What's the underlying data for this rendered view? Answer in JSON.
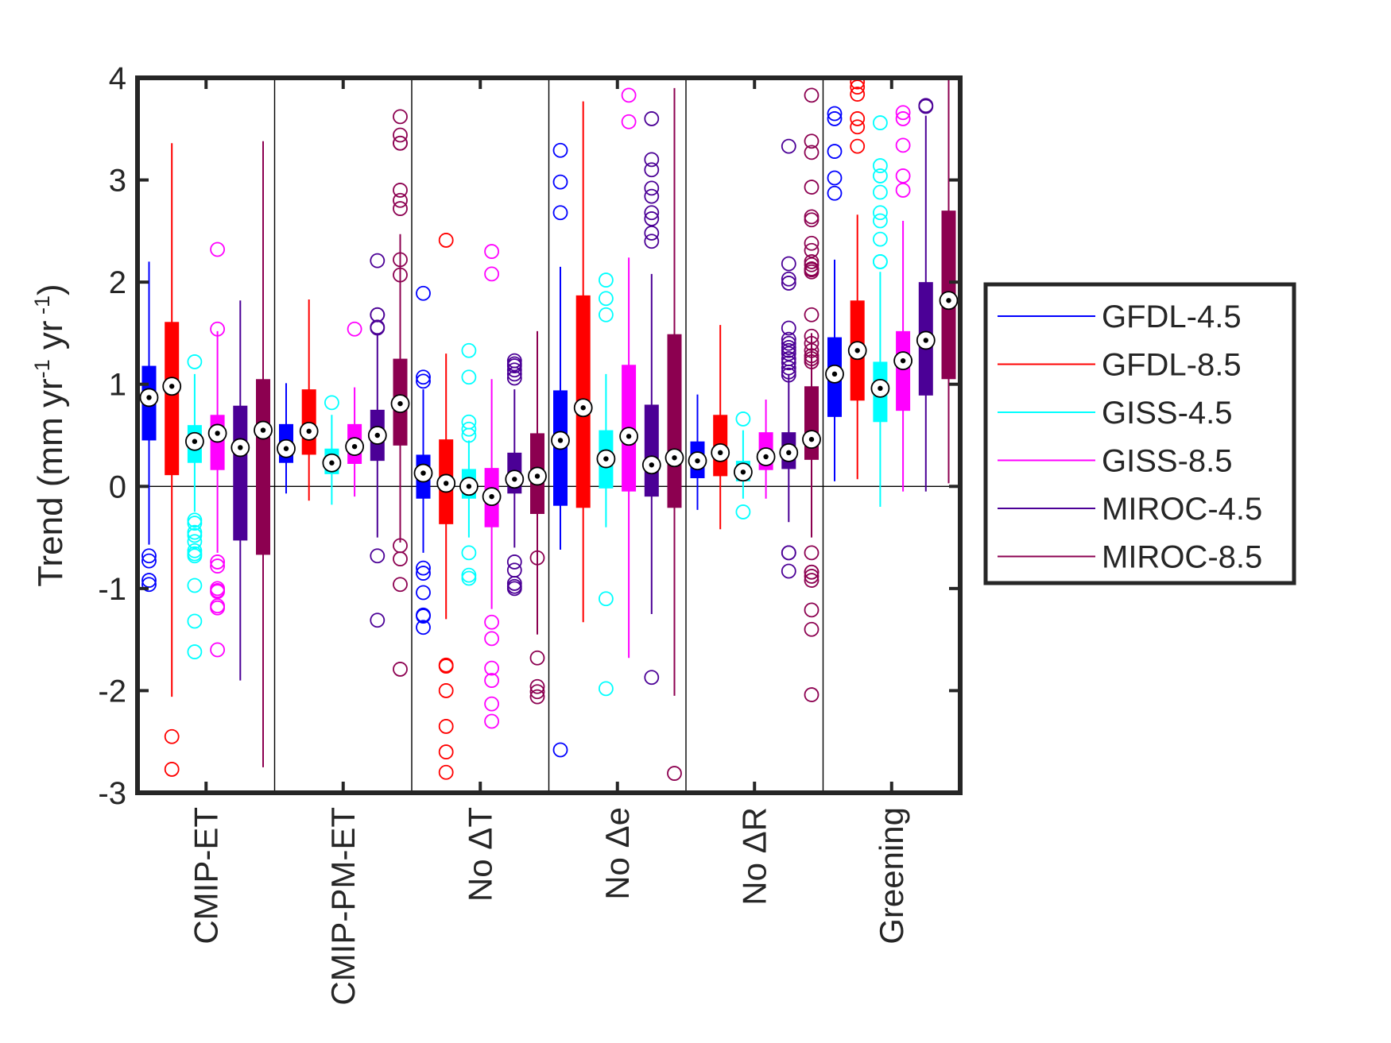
{
  "chart_data": {
    "type": "box",
    "ylabel": {
      "main": "Trend (mm yr",
      "sup1": "-1",
      "mid": " yr",
      "sup2": " -1",
      "end": ")"
    },
    "ylim": [
      -3,
      4
    ],
    "yticks": [
      -3,
      -2,
      -1,
      0,
      1,
      2,
      3,
      4
    ],
    "ytick_labels": [
      "-3",
      "-2",
      "-1",
      "0",
      "1",
      "2",
      "3",
      "4"
    ],
    "grid": false,
    "legend_position": "right",
    "categories": [
      "CMIP-ET",
      "CMIP-PM-ET",
      "No ΔT",
      "No Δe",
      "No ΔR",
      "Greening"
    ],
    "series": [
      {
        "name": "GFDL-4.5",
        "color": "#0000ff",
        "boxes": [
          {
            "median": 0.87,
            "q1": 0.45,
            "q3": 1.18,
            "wlo": -0.57,
            "whi": 2.2,
            "outliers": [
              -0.73,
              -0.96,
              -0.92,
              -0.68
            ]
          },
          {
            "median": 0.37,
            "q1": 0.23,
            "q3": 0.61,
            "wlo": -0.07,
            "whi": 1.01,
            "outliers": []
          },
          {
            "median": 0.13,
            "q1": -0.12,
            "q3": 0.31,
            "wlo": -0.65,
            "whi": 0.95,
            "outliers": [
              1.89,
              1.07,
              1.03,
              -0.8,
              -0.85,
              -1.04,
              -1.26,
              -1.27,
              -1.38
            ]
          },
          {
            "median": 0.45,
            "q1": -0.19,
            "q3": 0.94,
            "wlo": -0.62,
            "whi": 2.15,
            "outliers": [
              3.29,
              2.98,
              2.68,
              -2.58
            ]
          },
          {
            "median": 0.25,
            "q1": 0.08,
            "q3": 0.44,
            "wlo": -0.23,
            "whi": 0.9,
            "outliers": []
          },
          {
            "median": 1.1,
            "q1": 0.68,
            "q3": 1.46,
            "wlo": 0.05,
            "whi": 2.22,
            "outliers": [
              3.65,
              3.6,
              3.28,
              3.02,
              2.87
            ]
          }
        ]
      },
      {
        "name": "GFDL-8.5",
        "color": "#ff0000",
        "boxes": [
          {
            "median": 0.98,
            "q1": 0.11,
            "q3": 1.61,
            "wlo": -2.06,
            "whi": 3.36,
            "outliers": [
              -2.45,
              -2.77
            ]
          },
          {
            "median": 0.54,
            "q1": 0.31,
            "q3": 0.95,
            "wlo": -0.14,
            "whi": 1.83,
            "outliers": []
          },
          {
            "median": 0.03,
            "q1": -0.37,
            "q3": 0.46,
            "wlo": -1.3,
            "whi": 1.3,
            "outliers": [
              2.41,
              -1.75,
              -1.76,
              -2.0,
              -2.35,
              -2.6,
              -2.8
            ]
          },
          {
            "median": 0.77,
            "q1": -0.21,
            "q3": 1.87,
            "wlo": -1.33,
            "whi": 3.77,
            "outliers": []
          },
          {
            "median": 0.33,
            "q1": 0.1,
            "q3": 0.7,
            "wlo": -0.42,
            "whi": 1.58,
            "outliers": []
          },
          {
            "median": 1.33,
            "q1": 0.84,
            "q3": 1.82,
            "wlo": 0.07,
            "whi": 2.66,
            "outliers": [
              3.96,
              3.91,
              3.84,
              3.6,
              3.52,
              3.33
            ]
          }
        ]
      },
      {
        "name": "GISS-4.5",
        "color": "#00ffff",
        "boxes": [
          {
            "median": 0.44,
            "q1": 0.23,
            "q3": 0.6,
            "wlo": -0.25,
            "whi": 1.1,
            "outliers": [
              1.22,
              -0.33,
              -0.36,
              -0.45,
              -0.48,
              -0.54,
              -0.63,
              -0.66,
              -0.68,
              -0.97,
              -1.32,
              -1.62
            ]
          },
          {
            "median": 0.23,
            "q1": 0.12,
            "q3": 0.37,
            "wlo": -0.18,
            "whi": 0.7,
            "outliers": [
              0.82
            ]
          },
          {
            "median": 0.0,
            "q1": -0.12,
            "q3": 0.17,
            "wlo": -0.5,
            "whi": 0.45,
            "outliers": [
              1.33,
              1.07,
              0.63,
              0.56,
              0.5,
              -0.65,
              -0.87,
              -0.9
            ]
          },
          {
            "median": 0.27,
            "q1": -0.02,
            "q3": 0.55,
            "wlo": -0.4,
            "whi": 1.1,
            "outliers": [
              2.02,
              1.84,
              1.68,
              -1.1,
              -1.98
            ]
          },
          {
            "median": 0.14,
            "q1": 0.05,
            "q3": 0.25,
            "wlo": -0.12,
            "whi": 0.55,
            "outliers": [
              0.66,
              -0.25
            ]
          },
          {
            "median": 0.96,
            "q1": 0.63,
            "q3": 1.22,
            "wlo": -0.2,
            "whi": 2.1,
            "outliers": [
              3.56,
              3.14,
              3.04,
              2.88,
              2.68,
              2.6,
              2.42,
              2.2,
              2.2
            ]
          }
        ]
      },
      {
        "name": "GISS-8.5",
        "color": "#ff00ff",
        "boxes": [
          {
            "median": 0.52,
            "q1": 0.16,
            "q3": 0.7,
            "wlo": -0.65,
            "whi": 1.52,
            "outliers": [
              2.32,
              1.54,
              -0.74,
              -0.78,
              -1.0,
              -1.02,
              -1.03,
              -1.17,
              -1.19,
              -1.6
            ]
          },
          {
            "median": 0.39,
            "q1": 0.22,
            "q3": 0.61,
            "wlo": -0.1,
            "whi": 0.97,
            "outliers": [
              1.54
            ]
          },
          {
            "median": -0.1,
            "q1": -0.4,
            "q3": 0.18,
            "wlo": -1.2,
            "whi": 1.05,
            "outliers": [
              2.3,
              2.08,
              -1.33,
              -1.49,
              -1.78,
              -1.9,
              -2.13,
              -2.3
            ]
          },
          {
            "median": 0.49,
            "q1": -0.05,
            "q3": 1.19,
            "wlo": -1.68,
            "whi": 2.24,
            "outliers": [
              3.83,
              3.57
            ]
          },
          {
            "median": 0.29,
            "q1": 0.16,
            "q3": 0.53,
            "wlo": -0.12,
            "whi": 0.85,
            "outliers": []
          },
          {
            "median": 1.23,
            "q1": 0.74,
            "q3": 1.52,
            "wlo": -0.05,
            "whi": 2.6,
            "outliers": [
              3.66,
              3.6,
              3.34,
              3.04,
              2.9
            ]
          }
        ]
      },
      {
        "name": "MIROC-4.5",
        "color": "#4b0096",
        "boxes": [
          {
            "median": 0.38,
            "q1": -0.53,
            "q3": 0.79,
            "wlo": -1.9,
            "whi": 1.82,
            "outliers": []
          },
          {
            "median": 0.5,
            "q1": 0.25,
            "q3": 0.75,
            "wlo": -0.5,
            "whi": 1.5,
            "outliers": [
              2.21,
              1.68,
              1.68,
              1.56,
              1.55,
              -0.68,
              -1.31
            ]
          },
          {
            "median": 0.07,
            "q1": -0.07,
            "q3": 0.33,
            "wlo": -0.6,
            "whi": 0.95,
            "outliers": [
              1.23,
              1.2,
              1.18,
              1.14,
              1.1,
              1.06,
              -0.74,
              -0.82,
              -0.95,
              -0.98,
              -1.0
            ]
          },
          {
            "median": 0.21,
            "q1": -0.1,
            "q3": 0.8,
            "wlo": -1.25,
            "whi": 2.08,
            "outliers": [
              3.6,
              3.2,
              3.1,
              2.92,
              2.84,
              2.68,
              2.62,
              2.48,
              2.4,
              -1.87
            ]
          },
          {
            "median": 0.33,
            "q1": 0.17,
            "q3": 0.53,
            "wlo": -0.35,
            "whi": 1.1,
            "outliers": [
              3.33,
              2.18,
              2.03,
              1.99,
              1.55,
              1.44,
              1.4,
              1.36,
              1.33,
              1.3,
              1.25,
              1.21,
              1.16,
              1.12,
              1.09,
              -0.65,
              -0.65,
              -0.83
            ]
          },
          {
            "median": 1.43,
            "q1": 0.89,
            "q3": 2.0,
            "wlo": -0.05,
            "whi": 3.63,
            "outliers": [
              3.73,
              3.72
            ]
          }
        ]
      },
      {
        "name": "MIROC-8.5",
        "color": "#8c0050",
        "boxes": [
          {
            "median": 0.55,
            "q1": -0.67,
            "q3": 1.05,
            "wlo": -2.75,
            "whi": 3.38,
            "outliers": []
          },
          {
            "median": 0.81,
            "q1": 0.4,
            "q3": 1.25,
            "wlo": -0.55,
            "whi": 2.47,
            "outliers": [
              3.62,
              3.44,
              3.36,
              3.36,
              2.9,
              2.8,
              2.72,
              2.22,
              2.07,
              -0.58,
              -0.71,
              -0.96,
              -1.79
            ]
          },
          {
            "median": 0.1,
            "q1": -0.27,
            "q3": 0.52,
            "wlo": -1.45,
            "whi": 1.52,
            "outliers": [
              -0.7,
              -1.68,
              -1.96,
              -2.01,
              -2.06
            ]
          },
          {
            "median": 0.28,
            "q1": -0.21,
            "q3": 1.49,
            "wlo": -2.05,
            "whi": 3.9,
            "outliers": [
              -2.81
            ]
          },
          {
            "median": 0.46,
            "q1": 0.26,
            "q3": 0.98,
            "wlo": -0.5,
            "whi": 1.5,
            "outliers": [
              3.83,
              3.38,
              3.27,
              2.93,
              2.64,
              2.61,
              2.38,
              2.31,
              2.2,
              2.17,
              2.13,
              2.12,
              2.1,
              1.68,
              1.47,
              1.4,
              1.33,
              1.28,
              1.25,
              1.22,
              -0.65,
              -0.84,
              -0.84,
              -0.88,
              -0.92,
              -1.21,
              -1.4,
              -2.04
            ]
          },
          {
            "median": 1.82,
            "q1": 1.05,
            "q3": 2.7,
            "wlo": 0.03,
            "whi": 4.0,
            "outliers": []
          }
        ]
      }
    ]
  }
}
